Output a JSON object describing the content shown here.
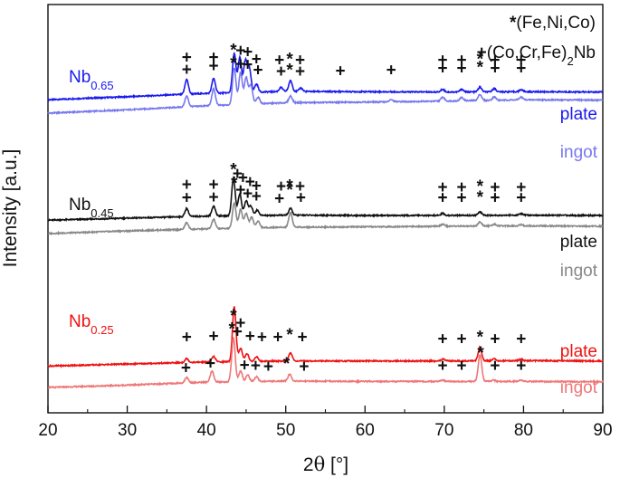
{
  "chart_data": {
    "type": "line",
    "xlabel_parts": [
      "2",
      "θ",
      " [°]"
    ],
    "ylabel": "Intensity [a.u.]",
    "xlim": [
      20,
      90
    ],
    "xticks": [
      20,
      30,
      40,
      50,
      60,
      70,
      80,
      90
    ],
    "yticks": "none",
    "grid": false,
    "legend": {
      "placement": "top-right",
      "entries": [
        {
          "symbol": "*",
          "label": "(Fe,Ni,Co)"
        },
        {
          "symbol": "+",
          "label_parts": [
            "(Co,Cr,Fe)",
            "2",
            "Nb"
          ]
        }
      ]
    },
    "samples": [
      {
        "base": "Nb",
        "sub": "0.65",
        "color": "#1a1aee"
      },
      {
        "base": "Nb",
        "sub": "0.45",
        "color": "#111111"
      },
      {
        "base": "Nb",
        "sub": "0.25",
        "color": "#ee1111"
      }
    ],
    "series": [
      {
        "name": "plate",
        "sample": 0,
        "color": "#1a1aee",
        "offset": 0.2,
        "scale": 0.74,
        "background": [
          [
            20,
            0.0
          ],
          [
            30,
            0.045
          ],
          [
            40,
            0.095
          ],
          [
            50,
            0.125
          ],
          [
            60,
            0.12
          ],
          [
            70,
            0.115
          ],
          [
            80,
            0.12
          ],
          [
            90,
            0.115
          ]
        ],
        "peaks": [
          [
            37.5,
            0.22
          ],
          [
            40.9,
            0.22
          ],
          [
            43.5,
            0.58
          ],
          [
            44.2,
            0.52
          ],
          [
            44.9,
            0.46
          ],
          [
            45.4,
            0.35
          ],
          [
            46.3,
            0.12
          ],
          [
            49.4,
            0.06
          ],
          [
            50.6,
            0.16
          ],
          [
            51.9,
            0.05
          ],
          [
            69.8,
            0.04
          ],
          [
            72.2,
            0.04
          ],
          [
            74.5,
            0.07
          ],
          [
            76.3,
            0.05
          ],
          [
            79.7,
            0.03
          ]
        ],
        "markers": [
          {
            "s": "+",
            "x": 37.5,
            "y": 0.845
          },
          {
            "s": "+",
            "x": 40.9,
            "y": 0.845
          },
          {
            "s": "*",
            "x": 43.4,
            "y": 0.955
          },
          {
            "s": "+",
            "x": 44.3,
            "y": 0.945
          },
          {
            "s": "+",
            "x": 45.2,
            "y": 0.925
          },
          {
            "s": "+",
            "x": 46.3,
            "y": 0.815
          },
          {
            "s": "+",
            "x": 49.2,
            "y": 0.805
          },
          {
            "s": "*",
            "x": 50.5,
            "y": 0.815
          },
          {
            "s": "+",
            "x": 51.8,
            "y": 0.805
          },
          {
            "s": "+",
            "x": 69.8,
            "y": 0.805
          },
          {
            "s": "+",
            "x": 72.2,
            "y": 0.805
          },
          {
            "s": "*",
            "x": 74.5,
            "y": 0.815
          },
          {
            "s": "+",
            "x": 76.4,
            "y": 0.805
          },
          {
            "s": "+",
            "x": 79.7,
            "y": 0.805
          }
        ]
      },
      {
        "name": "ingot",
        "sample": 0,
        "color": "#7878ee",
        "offset": 0.0,
        "scale": 0.74,
        "background": [
          [
            20,
            0.0
          ],
          [
            30,
            0.05
          ],
          [
            40,
            0.11
          ],
          [
            50,
            0.155
          ],
          [
            60,
            0.165
          ],
          [
            70,
            0.18
          ],
          [
            80,
            0.2
          ],
          [
            90,
            0.195
          ]
        ],
        "peaks": [
          [
            37.5,
            0.16
          ],
          [
            40.9,
            0.25
          ],
          [
            43.5,
            0.55
          ],
          [
            44.3,
            0.48
          ],
          [
            45.0,
            0.4
          ],
          [
            45.6,
            0.28
          ],
          [
            46.5,
            0.1
          ],
          [
            50.6,
            0.1
          ],
          [
            63.3,
            0.03
          ],
          [
            69.8,
            0.06
          ],
          [
            72.2,
            0.05
          ],
          [
            74.5,
            0.09
          ],
          [
            76.3,
            0.05
          ],
          [
            79.7,
            0.04
          ]
        ],
        "markers": [
          {
            "s": "+",
            "x": 37.5,
            "y": 0.665
          },
          {
            "s": "+",
            "x": 40.9,
            "y": 0.715
          },
          {
            "s": "*",
            "x": 43.4,
            "y": 0.755
          },
          {
            "s": "+",
            "x": 44.3,
            "y": 0.745
          },
          {
            "s": "+",
            "x": 45.2,
            "y": 0.735
          },
          {
            "s": "+",
            "x": 46.5,
            "y": 0.655
          },
          {
            "s": "+",
            "x": 49.4,
            "y": 0.635
          },
          {
            "s": "*",
            "x": 50.5,
            "y": 0.655
          },
          {
            "s": "+",
            "x": 51.8,
            "y": 0.635
          },
          {
            "s": "+",
            "x": 56.9,
            "y": 0.645
          },
          {
            "s": "+",
            "x": 63.3,
            "y": 0.655
          },
          {
            "s": "+",
            "x": 69.8,
            "y": 0.685
          },
          {
            "s": "+",
            "x": 72.2,
            "y": 0.685
          },
          {
            "s": "*",
            "x": 74.5,
            "y": 0.695
          },
          {
            "s": "+",
            "x": 76.4,
            "y": 0.685
          },
          {
            "s": "+",
            "x": 79.7,
            "y": 0.685
          }
        ]
      },
      {
        "name": "plate",
        "sample": 1,
        "color": "#111111",
        "offset": 0.2,
        "scale": 0.74,
        "background": [
          [
            20,
            0.0
          ],
          [
            30,
            0.03
          ],
          [
            40,
            0.06
          ],
          [
            50,
            0.075
          ],
          [
            60,
            0.07
          ],
          [
            70,
            0.07
          ],
          [
            80,
            0.075
          ],
          [
            90,
            0.07
          ]
        ],
        "peaks": [
          [
            37.5,
            0.12
          ],
          [
            40.9,
            0.15
          ],
          [
            43.4,
            0.56
          ],
          [
            44.2,
            0.32
          ],
          [
            45.0,
            0.22
          ],
          [
            45.6,
            0.14
          ],
          [
            46.4,
            0.08
          ],
          [
            50.6,
            0.1
          ],
          [
            69.8,
            0.03
          ],
          [
            74.5,
            0.05
          ],
          [
            79.7,
            0.02
          ]
        ],
        "markers": [
          {
            "s": "*",
            "x": 43.4,
            "y": 0.965
          },
          {
            "s": "+",
            "x": 43.9,
            "y": 0.905
          },
          {
            "s": "+",
            "x": 44.6,
            "y": 0.845
          },
          {
            "s": "+",
            "x": 45.5,
            "y": 0.785
          },
          {
            "s": "+",
            "x": 37.5,
            "y": 0.745
          },
          {
            "s": "+",
            "x": 40.9,
            "y": 0.745
          },
          {
            "s": "+",
            "x": 46.3,
            "y": 0.725
          },
          {
            "s": "+",
            "x": 49.4,
            "y": 0.715
          },
          {
            "s": "*",
            "x": 50.5,
            "y": 0.725
          },
          {
            "s": "+",
            "x": 51.8,
            "y": 0.715
          },
          {
            "s": "+",
            "x": 69.8,
            "y": 0.705
          },
          {
            "s": "+",
            "x": 72.2,
            "y": 0.705
          },
          {
            "s": "*",
            "x": 74.5,
            "y": 0.715
          },
          {
            "s": "+",
            "x": 76.4,
            "y": 0.705
          },
          {
            "s": "+",
            "x": 79.7,
            "y": 0.705
          }
        ]
      },
      {
        "name": "ingot",
        "sample": 1,
        "color": "#888888",
        "offset": 0.0,
        "scale": 0.74,
        "background": [
          [
            20,
            0.0
          ],
          [
            30,
            0.04
          ],
          [
            40,
            0.07
          ],
          [
            50,
            0.095
          ],
          [
            60,
            0.1
          ],
          [
            70,
            0.11
          ],
          [
            80,
            0.115
          ],
          [
            90,
            0.11
          ]
        ],
        "peaks": [
          [
            37.5,
            0.1
          ],
          [
            40.9,
            0.14
          ],
          [
            43.5,
            0.38
          ],
          [
            44.3,
            0.28
          ],
          [
            45.0,
            0.22
          ],
          [
            45.7,
            0.16
          ],
          [
            46.5,
            0.1
          ],
          [
            50.6,
            0.22
          ],
          [
            69.8,
            0.03
          ],
          [
            74.5,
            0.06
          ],
          [
            76.3,
            0.03
          ],
          [
            79.7,
            0.02
          ]
        ],
        "markers": [
          {
            "s": "+",
            "x": 37.5,
            "y": 0.545
          },
          {
            "s": "+",
            "x": 40.9,
            "y": 0.555
          },
          {
            "s": "*",
            "x": 43.5,
            "y": 0.765
          },
          {
            "s": "+",
            "x": 44.3,
            "y": 0.665
          },
          {
            "s": "+",
            "x": 45.2,
            "y": 0.605
          },
          {
            "s": "+",
            "x": 46.3,
            "y": 0.565
          },
          {
            "s": "+",
            "x": 49.2,
            "y": 0.535
          },
          {
            "s": "*",
            "x": 50.5,
            "y": 0.665
          },
          {
            "s": "+",
            "x": 51.9,
            "y": 0.545
          },
          {
            "s": "+",
            "x": 69.8,
            "y": 0.545
          },
          {
            "s": "+",
            "x": 72.2,
            "y": 0.545
          },
          {
            "s": "*",
            "x": 74.5,
            "y": 0.555
          },
          {
            "s": "+",
            "x": 76.4,
            "y": 0.545
          },
          {
            "s": "+",
            "x": 79.7,
            "y": 0.545
          }
        ]
      },
      {
        "name": "plate",
        "sample": 2,
        "color": "#ee1111",
        "offset": 0.32,
        "scale": 0.74,
        "background": [
          [
            20,
            0.0
          ],
          [
            30,
            0.03
          ],
          [
            40,
            0.06
          ],
          [
            50,
            0.075
          ],
          [
            60,
            0.075
          ],
          [
            70,
            0.075
          ],
          [
            80,
            0.08
          ],
          [
            90,
            0.075
          ]
        ],
        "peaks": [
          [
            37.5,
            0.06
          ],
          [
            40.9,
            0.08
          ],
          [
            43.5,
            0.82
          ],
          [
            44.3,
            0.2
          ],
          [
            45.1,
            0.12
          ],
          [
            46.3,
            0.07
          ],
          [
            50.6,
            0.12
          ],
          [
            69.8,
            0.03
          ],
          [
            74.5,
            0.2
          ],
          [
            76.3,
            0.03
          ],
          [
            79.7,
            0.02
          ]
        ],
        "markers": [
          {
            "s": "*",
            "x": 43.4,
            "y": 1.08
          },
          {
            "s": "+",
            "x": 44.3,
            "y": 0.97
          },
          {
            "s": "*",
            "x": 43.2,
            "y": 0.885
          },
          {
            "s": "+",
            "x": 43.9,
            "y": 0.845
          },
          {
            "s": "+",
            "x": 37.5,
            "y": 0.765
          },
          {
            "s": "+",
            "x": 40.9,
            "y": 0.775
          },
          {
            "s": "+",
            "x": 45.5,
            "y": 0.775
          },
          {
            "s": "+",
            "x": 47.0,
            "y": 0.765
          },
          {
            "s": "+",
            "x": 49.0,
            "y": 0.765
          },
          {
            "s": "*",
            "x": 50.5,
            "y": 0.795
          },
          {
            "s": "+",
            "x": 52.1,
            "y": 0.765
          },
          {
            "s": "+",
            "x": 69.8,
            "y": 0.735
          },
          {
            "s": "+",
            "x": 72.2,
            "y": 0.735
          },
          {
            "s": "*",
            "x": 74.5,
            "y": 0.765
          },
          {
            "s": "+",
            "x": 76.4,
            "y": 0.735
          },
          {
            "s": "+",
            "x": 79.7,
            "y": 0.735
          }
        ]
      },
      {
        "name": "ingot",
        "sample": 2,
        "color": "#ee7777",
        "offset": 0.0,
        "scale": 0.74,
        "background": [
          [
            20,
            0.0
          ],
          [
            30,
            0.035
          ],
          [
            40,
            0.08
          ],
          [
            50,
            0.095
          ],
          [
            60,
            0.09
          ],
          [
            70,
            0.09
          ],
          [
            80,
            0.09
          ],
          [
            90,
            0.085
          ]
        ],
        "peaks": [
          [
            37.5,
            0.08
          ],
          [
            40.7,
            0.16
          ],
          [
            43.4,
            0.66
          ],
          [
            44.3,
            0.16
          ],
          [
            45.2,
            0.1
          ],
          [
            46.3,
            0.07
          ],
          [
            50.5,
            0.1
          ],
          [
            69.8,
            0.02
          ],
          [
            74.5,
            0.4
          ],
          [
            76.2,
            0.02
          ],
          [
            79.7,
            0.02
          ]
        ],
        "markers": [
          {
            "s": "+",
            "x": 37.4,
            "y": 0.305
          },
          {
            "s": "+",
            "x": 40.5,
            "y": 0.375
          },
          {
            "s": "+",
            "x": 44.8,
            "y": 0.345
          },
          {
            "s": "+",
            "x": 46.2,
            "y": 0.335
          },
          {
            "s": "+",
            "x": 47.8,
            "y": 0.325
          },
          {
            "s": "*",
            "x": 50.1,
            "y": 0.365
          },
          {
            "s": "+",
            "x": 52.3,
            "y": 0.325
          },
          {
            "s": "+",
            "x": 69.8,
            "y": 0.335
          },
          {
            "s": "+",
            "x": 72.2,
            "y": 0.335
          },
          {
            "s": "*",
            "x": 74.6,
            "y": 0.525
          },
          {
            "s": "+",
            "x": 76.4,
            "y": 0.335
          },
          {
            "s": "+",
            "x": 79.7,
            "y": 0.335
          }
        ]
      }
    ]
  }
}
